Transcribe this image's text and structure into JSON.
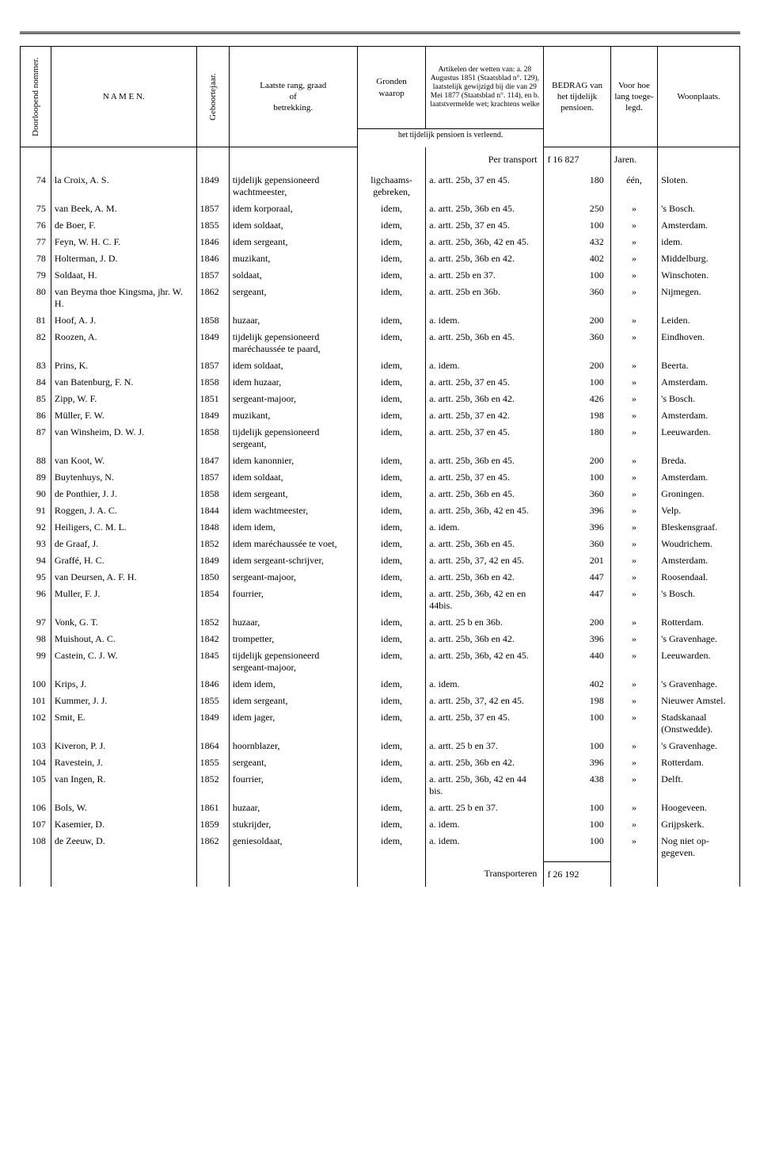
{
  "headers": {
    "col0": "Doorloopend nommer.",
    "col1": "N A M E N.",
    "col2": "Geboortejaar.",
    "col3": "Laatste rang, graad\nof\nbetrekking.",
    "col4": "Gronden\nwaarop",
    "col5": "Artikelen der wetten van: a. 28 Augustus 1851 (Staatsblad n°. 129), laatstelijk gewijzigd bij die van 29 Mei 1877 (Staatsblad n°. 114), en b. laatstvermelde wet; krachtens welke",
    "col6": "BEDRAG van het tijdelijk pensioen.",
    "col7": "Voor hoe lang toege-legd.",
    "col8": "Woonplaats.",
    "sub45": "het tijdelijk pensioen is verleend."
  },
  "transport_top": {
    "label": "Per transport",
    "amount": "f  16 827",
    "jaren": "Jaren."
  },
  "transport_bottom": {
    "label": "Transporteren",
    "amount": "f  26 192"
  },
  "rows": [
    {
      "n": "74",
      "name": "la Croix, A. S.",
      "year": "1849",
      "rank": "tijdelijk gepensioneerd wachtmeester,",
      "grond": "ligchaams-gebreken,",
      "art": "a. artt. 25b, 37 en 45.",
      "bedrag": "180",
      "lang": "één,",
      "woon": "Sloten."
    },
    {
      "n": "75",
      "name": "van Beek, A. M.",
      "year": "1857",
      "rank": "idem korporaal,",
      "grond": "idem,",
      "art": "a. artt. 25b, 36b en 45.",
      "bedrag": "250",
      "lang": "»",
      "woon": "'s Bosch."
    },
    {
      "n": "76",
      "name": "de Boer, F.",
      "year": "1855",
      "rank": "idem soldaat,",
      "grond": "idem,",
      "art": "a. artt. 25b, 37 en 45.",
      "bedrag": "100",
      "lang": "»",
      "woon": "Amsterdam."
    },
    {
      "n": "77",
      "name": "Feyn, W. H. C. F.",
      "year": "1846",
      "rank": "idem sergeant,",
      "grond": "idem,",
      "art": "a. artt. 25b, 36b, 42 en 45.",
      "bedrag": "432",
      "lang": "»",
      "woon": "idem."
    },
    {
      "n": "78",
      "name": "Holterman, J. D.",
      "year": "1846",
      "rank": "muzikant,",
      "grond": "idem,",
      "art": "a. artt. 25b, 36b en 42.",
      "bedrag": "402",
      "lang": "»",
      "woon": "Middelburg."
    },
    {
      "n": "79",
      "name": "Soldaat, H.",
      "year": "1857",
      "rank": "soldaat,",
      "grond": "idem,",
      "art": "a. artt. 25b en 37.",
      "bedrag": "100",
      "lang": "»",
      "woon": "Winschoten."
    },
    {
      "n": "80",
      "name": "van Beyma thoe Kingsma, jhr. W. H.",
      "year": "1862",
      "rank": "sergeant,",
      "grond": "idem,",
      "art": "a. artt. 25b en 36b.",
      "bedrag": "360",
      "lang": "»",
      "woon": "Nijmegen."
    },
    {
      "n": "81",
      "name": "Hoof, A. J.",
      "year": "1858",
      "rank": "huzaar,",
      "grond": "idem,",
      "art": "a.    idem.",
      "bedrag": "200",
      "lang": "»",
      "woon": "Leiden."
    },
    {
      "n": "82",
      "name": "Roozen, A.",
      "year": "1849",
      "rank": "tijdelijk gepensioneerd maréchaussée te paard,",
      "grond": "idem,",
      "art": "a. artt. 25b, 36b en 45.",
      "bedrag": "360",
      "lang": "»",
      "woon": "Eindhoven."
    },
    {
      "n": "83",
      "name": "Prins, K.",
      "year": "1857",
      "rank": "idem soldaat,",
      "grond": "idem,",
      "art": "a.    idem.",
      "bedrag": "200",
      "lang": "»",
      "woon": "Beerta."
    },
    {
      "n": "84",
      "name": "van Batenburg, F. N.",
      "year": "1858",
      "rank": "idem huzaar,",
      "grond": "idem,",
      "art": "a. artt. 25b, 37 en 45.",
      "bedrag": "100",
      "lang": "»",
      "woon": "Amsterdam."
    },
    {
      "n": "85",
      "name": "Zipp, W. F.",
      "year": "1851",
      "rank": "sergeant-majoor,",
      "grond": "idem,",
      "art": "a. artt. 25b, 36b en 42.",
      "bedrag": "426",
      "lang": "»",
      "woon": "'s Bosch."
    },
    {
      "n": "86",
      "name": "Müller, F. W.",
      "year": "1849",
      "rank": "muzikant,",
      "grond": "idem,",
      "art": "a. artt. 25b, 37 en 42.",
      "bedrag": "198",
      "lang": "»",
      "woon": "Amsterdam."
    },
    {
      "n": "87",
      "name": "van Winsheim, D. W. J.",
      "year": "1858",
      "rank": "tijdelijk gepensioneerd sergeant,",
      "grond": "idem,",
      "art": "a. artt. 25b, 37 en 45.",
      "bedrag": "180",
      "lang": "»",
      "woon": "Leeuwarden."
    },
    {
      "n": "88",
      "name": "van Koot, W.",
      "year": "1847",
      "rank": "idem kanonnier,",
      "grond": "idem,",
      "art": "a. artt. 25b, 36b en 45.",
      "bedrag": "200",
      "lang": "»",
      "woon": "Breda."
    },
    {
      "n": "89",
      "name": "Buytenhuys, N.",
      "year": "1857",
      "rank": "idem soldaat,",
      "grond": "idem,",
      "art": "a. artt. 25b, 37 en 45.",
      "bedrag": "100",
      "lang": "»",
      "woon": "Amsterdam."
    },
    {
      "n": "90",
      "name": "de Ponthier, J. J.",
      "year": "1858",
      "rank": "idem sergeant,",
      "grond": "idem,",
      "art": "a. artt. 25b, 36b en 45.",
      "bedrag": "360",
      "lang": "»",
      "woon": "Groningen."
    },
    {
      "n": "91",
      "name": "Roggen, J. A. C.",
      "year": "1844",
      "rank": "idem wachtmeester,",
      "grond": "idem,",
      "art": "a. artt. 25b, 36b, 42 en 45.",
      "bedrag": "396",
      "lang": "»",
      "woon": "Velp."
    },
    {
      "n": "92",
      "name": "Heiligers, C. M. L.",
      "year": "1848",
      "rank": "idem   idem,",
      "grond": "idem,",
      "art": "a.    idem.",
      "bedrag": "396",
      "lang": "»",
      "woon": "Bleskensgraaf."
    },
    {
      "n": "93",
      "name": "de Graaf, J.",
      "year": "1852",
      "rank": "idem maréchaussée te voet,",
      "grond": "idem,",
      "art": "a. artt. 25b, 36b en 45.",
      "bedrag": "360",
      "lang": "»",
      "woon": "Woudrichem."
    },
    {
      "n": "94",
      "name": "Graffé, H. C.",
      "year": "1849",
      "rank": "idem sergeant-schrijver,",
      "grond": "idem,",
      "art": "a. artt. 25b, 37, 42 en 45.",
      "bedrag": "201",
      "lang": "»",
      "woon": "Amsterdam."
    },
    {
      "n": "95",
      "name": "van Deursen, A. F. H.",
      "year": "1850",
      "rank": "sergeant-majoor,",
      "grond": "idem,",
      "art": "a. artt. 25b, 36b en 42.",
      "bedrag": "447",
      "lang": "»",
      "woon": "Roosendaal."
    },
    {
      "n": "96",
      "name": "Muller, F. J.",
      "year": "1854",
      "rank": "fourrier,",
      "grond": "idem,",
      "art": "a. artt. 25b, 36b, 42 en en 44bis.",
      "bedrag": "447",
      "lang": "»",
      "woon": "'s Bosch."
    },
    {
      "n": "97",
      "name": "Vonk, G. T.",
      "year": "1852",
      "rank": "huzaar,",
      "grond": "idem,",
      "art": "a. artt. 25 b en 36b.",
      "bedrag": "200",
      "lang": "»",
      "woon": "Rotterdam."
    },
    {
      "n": "98",
      "name": "Muishout, A. C.",
      "year": "1842",
      "rank": "trompetter,",
      "grond": "idem,",
      "art": "a. artt. 25b, 36b en 42.",
      "bedrag": "396",
      "lang": "»",
      "woon": "'s Gravenhage."
    },
    {
      "n": "99",
      "name": "Castein, C. J. W.",
      "year": "1845",
      "rank": "tijdelijk gepensioneerd sergeant-majoor,",
      "grond": "idem,",
      "art": "a. artt. 25b, 36b, 42 en 45.",
      "bedrag": "440",
      "lang": "»",
      "woon": "Leeuwarden."
    },
    {
      "n": "100",
      "name": "Krips, J.",
      "year": "1846",
      "rank": "idem   idem,",
      "grond": "idem,",
      "art": "a.    idem.",
      "bedrag": "402",
      "lang": "»",
      "woon": "'s Gravenhage."
    },
    {
      "n": "101",
      "name": "Kummer, J. J.",
      "year": "1855",
      "rank": "idem sergeant,",
      "grond": "idem,",
      "art": "a. artt. 25b, 37, 42 en 45.",
      "bedrag": "198",
      "lang": "»",
      "woon": "Nieuwer Amstel."
    },
    {
      "n": "102",
      "name": "Smit, E.",
      "year": "1849",
      "rank": "idem jager,",
      "grond": "idem,",
      "art": "a. artt. 25b, 37 en 45.",
      "bedrag": "100",
      "lang": "»",
      "woon": "Stadskanaal (Onstwedde)."
    },
    {
      "n": "103",
      "name": "Kiveron, P. J.",
      "year": "1864",
      "rank": "hoornblazer,",
      "grond": "idem,",
      "art": "a. artt. 25 b en 37.",
      "bedrag": "100",
      "lang": "»",
      "woon": "'s Gravenhage."
    },
    {
      "n": "104",
      "name": "Ravestein, J.",
      "year": "1855",
      "rank": "sergeant,",
      "grond": "idem,",
      "art": "a. artt. 25b, 36b en 42.",
      "bedrag": "396",
      "lang": "»",
      "woon": "Rotterdam."
    },
    {
      "n": "105",
      "name": "van Ingen, R.",
      "year": "1852",
      "rank": "fourrier,",
      "grond": "idem,",
      "art": "a. artt. 25b, 36b, 42 en 44 bis.",
      "bedrag": "438",
      "lang": "»",
      "woon": "Delft."
    },
    {
      "n": "106",
      "name": "Bols, W.",
      "year": "1861",
      "rank": "huzaar,",
      "grond": "idem,",
      "art": "a. artt. 25 b en 37.",
      "bedrag": "100",
      "lang": "»",
      "woon": "Hoogeveen."
    },
    {
      "n": "107",
      "name": "Kasemier, D.",
      "year": "1859",
      "rank": "stukrijder,",
      "grond": "idem,",
      "art": "a.    idem.",
      "bedrag": "100",
      "lang": "»",
      "woon": "Grijpskerk."
    },
    {
      "n": "108",
      "name": "de Zeeuw, D.",
      "year": "1862",
      "rank": "geniesoldaat,",
      "grond": "idem,",
      "art": "a.    idem.",
      "bedrag": "100",
      "lang": "»",
      "woon": "Nog niet op-gegeven."
    }
  ]
}
